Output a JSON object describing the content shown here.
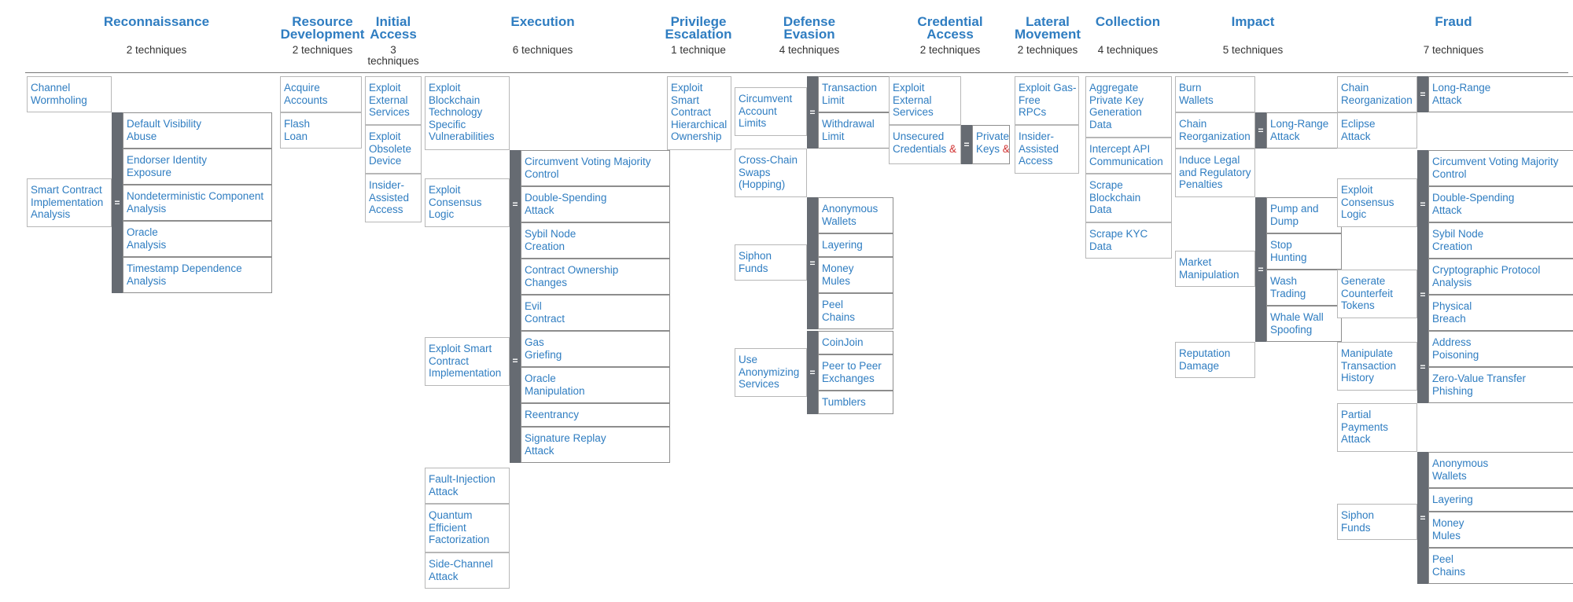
{
  "tactics": [
    {
      "name": "Reconnaissance",
      "count": "2 techniques",
      "techniques": [
        {
          "label": "Channel\nWormholing"
        },
        {
          "label": "Smart Contract\nImplementation\nAnalysis",
          "subtechniques": [
            "Default Visibility\nAbuse",
            "Endorser Identity\nExposure",
            "Nondeterministic Component\nAnalysis",
            "Oracle\nAnalysis",
            "Timestamp Dependence\nAnalysis"
          ]
        }
      ]
    },
    {
      "name": "Resource\nDevelopment",
      "count": "2 techniques",
      "techniques": [
        {
          "label": "Acquire\nAccounts"
        },
        {
          "label": "Flash\nLoan"
        }
      ]
    },
    {
      "name": "Initial\nAccess",
      "count": "3\ntechniques",
      "techniques": [
        {
          "label": "Exploit\nExternal\nServices"
        },
        {
          "label": "Exploit\nObsolete\nDevice"
        },
        {
          "label": "Insider-\nAssisted\nAccess"
        }
      ]
    },
    {
      "name": "Execution",
      "count": "6 techniques",
      "techniques": [
        {
          "label": "Exploit\nBlockchain\nTechnology\nSpecific\nVulnerabilities"
        },
        {
          "label": "Exploit\nConsensus\nLogic",
          "subtechniques": [
            "Circumvent Voting Majority\nControl",
            "Double-Spending\nAttack",
            "Sybil Node\nCreation"
          ]
        },
        {
          "label": "Exploit Smart\nContract\nImplementation",
          "subtechniques": [
            "Contract Ownership\nChanges",
            "Evil\nContract",
            "Gas\nGriefing",
            "Oracle\nManipulation",
            "Reentrancy",
            "Signature Replay\nAttack"
          ]
        },
        {
          "label": "Fault-Injection\nAttack"
        },
        {
          "label": "Quantum\nEfficient\nFactorization"
        },
        {
          "label": "Side-Channel\nAttack"
        }
      ]
    },
    {
      "name": "Privilege\nEscalation",
      "count": "1 technique",
      "techniques": [
        {
          "label": "Exploit\nSmart\nContract\nHierarchical\nOwnership"
        }
      ]
    },
    {
      "name": "Defense\nEvasion",
      "count": "4 techniques",
      "techniques": [
        {
          "label": "Circumvent\nAccount\nLimits",
          "subtechniques": [
            "Transaction\nLimit",
            "Withdrawal\nLimit"
          ]
        },
        {
          "label": "Cross-Chain\nSwaps\n(Hopping)"
        },
        {
          "label": "Siphon\nFunds",
          "subtechniques": [
            "Anonymous\nWallets",
            "Layering",
            "Money\nMules",
            "Peel\nChains"
          ]
        },
        {
          "label": "Use\nAnonymizing\nServices",
          "subtechniques": [
            "CoinJoin",
            "Peer to Peer\nExchanges",
            "Tumblers"
          ]
        }
      ]
    },
    {
      "name": "Credential\nAccess",
      "count": "2 techniques",
      "techniques": [
        {
          "label": "Exploit\nExternal\nServices"
        },
        {
          "label": "Unsecured\nCredentials",
          "subtechniques": [
            "Private\nKeys"
          ]
        }
      ]
    },
    {
      "name": "Lateral\nMovement",
      "count": "2 techniques",
      "techniques": [
        {
          "label": "Exploit Gas-\nFree\nRPCs"
        },
        {
          "label": "Insider-\nAssisted\nAccess"
        }
      ]
    },
    {
      "name": "Collection",
      "count": "4 techniques",
      "techniques": [
        {
          "label": "Aggregate\nPrivate Key\nGeneration\nData"
        },
        {
          "label": "Intercept API\nCommunication"
        },
        {
          "label": "Scrape\nBlockchain\nData"
        },
        {
          "label": "Scrape KYC\nData"
        }
      ]
    },
    {
      "name": "Impact",
      "count": "5 techniques",
      "techniques": [
        {
          "label": "Burn\nWallets"
        },
        {
          "label": "Chain\nReorganization",
          "subtechniques": [
            "Long-Range\nAttack"
          ]
        },
        {
          "label": "Induce Legal\nand Regulatory\nPenalties"
        },
        {
          "label": "Market\nManipulation",
          "subtechniques": [
            "Pump and\nDump",
            "Stop\nHunting",
            "Wash\nTrading",
            "Whale Wall\nSpoofing"
          ]
        },
        {
          "label": "Reputation\nDamage"
        }
      ]
    },
    {
      "name": "Fraud",
      "count": "7 techniques",
      "techniques": [
        {
          "label": "Chain\nReorganization",
          "subtechniques": [
            "Long-Range\nAttack"
          ]
        },
        {
          "label": "Eclipse\nAttack"
        },
        {
          "label": "Exploit\nConsensus\nLogic",
          "subtechniques": [
            "Circumvent Voting Majority\nControl",
            "Double-Spending\nAttack",
            "Sybil Node\nCreation"
          ]
        },
        {
          "label": "Generate\nCounterfeit\nTokens",
          "subtechniques": [
            "Cryptographic Protocol\nAnalysis",
            "Physical\nBreach"
          ]
        },
        {
          "label": "Manipulate\nTransaction\nHistory",
          "subtechniques": [
            "Address\nPoisoning",
            "Zero-Value Transfer\nPhishing"
          ]
        },
        {
          "label": "Partial\nPayments\nAttack"
        },
        {
          "label": "Siphon\nFunds",
          "subtechniques": [
            "Anonymous\nWallets",
            "Layering",
            "Money\nMules",
            "Peel\nChains"
          ]
        }
      ]
    }
  ],
  "handle_glyph": "=",
  "ampersand": "&",
  "colors": {
    "link": "#2f7dc1",
    "handle_bar": "#666b72",
    "amp": "#d03030",
    "count_text": "#333333"
  }
}
